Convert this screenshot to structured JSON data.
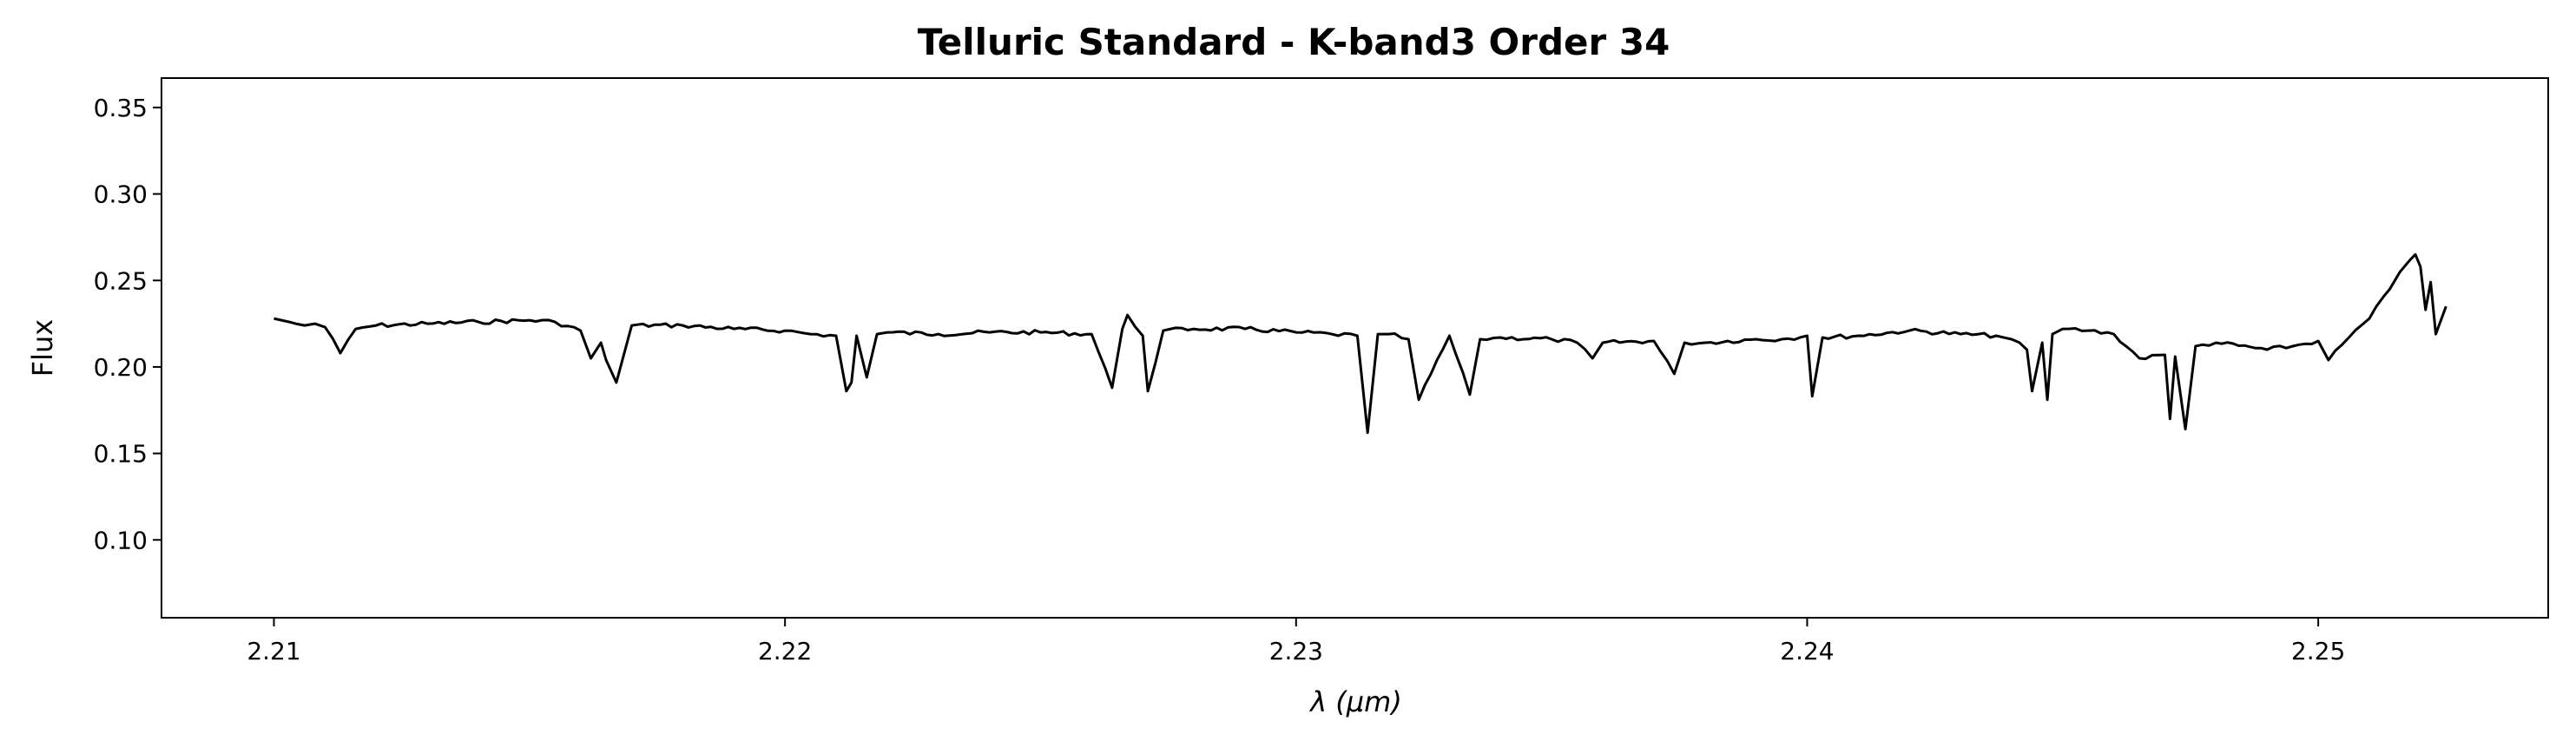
{
  "chart_data": {
    "type": "line",
    "title": "Telluric Standard - K-band3 Order 34",
    "xlabel": "λ (μm)",
    "ylabel": "Flux",
    "xlim": [
      2.2078,
      2.2545
    ],
    "ylim": [
      0.055,
      0.367
    ],
    "xticks": [
      "2.21",
      "2.22",
      "2.23",
      "2.24",
      "2.25"
    ],
    "yticks": [
      "0.10",
      "0.15",
      "0.20",
      "0.25",
      "0.30",
      "0.35"
    ],
    "grid": false,
    "line_color": "#000000",
    "series": [
      {
        "x": [
          2.21,
          2.2103,
          2.2106,
          2.2108,
          2.211,
          2.2113,
          2.2116,
          2.212,
          2.213,
          2.214,
          2.215,
          2.2155,
          2.216,
          2.2162,
          2.2164,
          2.2165,
          2.2167,
          2.217,
          2.218,
          2.219,
          2.22,
          2.2205,
          2.221,
          2.2212,
          2.2213,
          2.2214,
          2.2216,
          2.2218,
          2.222,
          2.223,
          2.224,
          2.225,
          2.226,
          2.2264,
          2.2266,
          2.2267,
          2.227,
          2.2271,
          2.2274,
          2.228,
          2.229,
          2.23,
          2.2307,
          2.2312,
          2.2314,
          2.2316,
          2.2318,
          2.2322,
          2.2324,
          2.233,
          2.2334,
          2.2336,
          2.234,
          2.235,
          2.2355,
          2.2358,
          2.236,
          2.237,
          2.2374,
          2.2376,
          2.238,
          2.239,
          2.2395,
          2.24,
          2.2401,
          2.2403,
          2.241,
          2.242,
          2.243,
          2.2437,
          2.244,
          2.2443,
          2.2444,
          2.2446,
          2.2447,
          2.2448,
          2.245,
          2.2455,
          2.246,
          2.2465,
          2.247,
          2.2471,
          2.2472,
          2.2474,
          2.2476,
          2.248,
          2.249,
          2.2495,
          2.25,
          2.2502,
          2.2506,
          2.251,
          2.2514,
          2.2516,
          2.2518,
          2.2519,
          2.252,
          2.2521,
          2.2522,
          2.2523,
          2.2525
        ],
        "y": [
          0.228,
          0.226,
          0.224,
          0.225,
          0.223,
          0.208,
          0.222,
          0.224,
          0.225,
          0.226,
          0.227,
          0.226,
          0.221,
          0.205,
          0.214,
          0.204,
          0.191,
          0.224,
          0.224,
          0.222,
          0.221,
          0.219,
          0.218,
          0.186,
          0.191,
          0.218,
          0.194,
          0.219,
          0.22,
          0.219,
          0.22,
          0.22,
          0.219,
          0.188,
          0.222,
          0.23,
          0.218,
          0.186,
          0.221,
          0.222,
          0.222,
          0.22,
          0.219,
          0.218,
          0.162,
          0.219,
          0.219,
          0.216,
          0.181,
          0.218,
          0.184,
          0.216,
          0.217,
          0.216,
          0.214,
          0.205,
          0.214,
          0.215,
          0.196,
          0.214,
          0.214,
          0.216,
          0.216,
          0.218,
          0.183,
          0.217,
          0.218,
          0.221,
          0.219,
          0.218,
          0.216,
          0.21,
          0.186,
          0.214,
          0.181,
          0.219,
          0.222,
          0.221,
          0.219,
          0.205,
          0.207,
          0.17,
          0.206,
          0.164,
          0.212,
          0.214,
          0.21,
          0.212,
          0.215,
          0.204,
          0.217,
          0.228,
          0.245,
          0.255,
          0.262,
          0.265,
          0.258,
          0.233,
          0.249,
          0.219,
          0.235
        ]
      }
    ]
  }
}
